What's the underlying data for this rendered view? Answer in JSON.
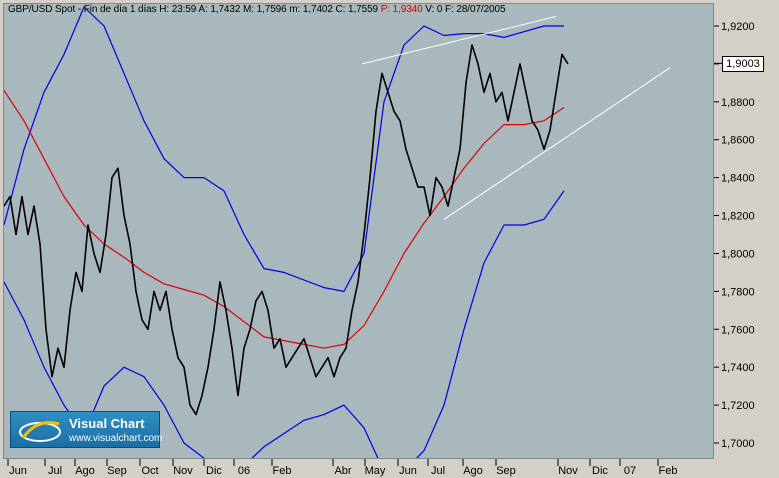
{
  "header": {
    "instrument": "GBP/USD Spot - Fin de día 1 días",
    "h": "H: 23:59",
    "a": "A: 1,7432",
    "m": "M: 1,7596",
    "mlow": "m: 1,7402",
    "c": "C: 1,7559",
    "p": "P: 1,9340",
    "v": "V: 0",
    "f": "F: 28/07/2005"
  },
  "logo": {
    "title": "Visual Chart",
    "url": "www.visualchart.com"
  },
  "colors": {
    "price": "#000000",
    "ma": "#e00000",
    "bands": "#0000e0",
    "trend": "#ffffff",
    "plot_bg": "#a9b8bd"
  },
  "chart_data": {
    "type": "line",
    "last_price_label": "1,9003",
    "y_ticks": [
      "1,9200",
      "1,9000",
      "1,8800",
      "1,8600",
      "1,8400",
      "1,8200",
      "1,8000",
      "1,7800",
      "1,7600",
      "1,7400",
      "1,7200",
      "1,7000"
    ],
    "ylim": [
      1.69,
      1.93
    ],
    "x_ticks": [
      "Jun",
      "Jul",
      "Ago",
      "Sep",
      "Oct",
      "Nov",
      "Dic",
      "06",
      "Feb",
      "Abr",
      "May",
      "Jun",
      "Jul",
      "Ago",
      "Sep",
      "Nov",
      "Dic",
      "07",
      "Feb"
    ],
    "series": [
      {
        "key": "price",
        "values": [
          [
            0,
            1.825
          ],
          [
            6,
            1.83
          ],
          [
            12,
            1.81
          ],
          [
            18,
            1.83
          ],
          [
            24,
            1.81
          ],
          [
            30,
            1.825
          ],
          [
            36,
            1.805
          ],
          [
            42,
            1.76
          ],
          [
            48,
            1.735
          ],
          [
            54,
            1.75
          ],
          [
            60,
            1.74
          ],
          [
            66,
            1.77
          ],
          [
            72,
            1.79
          ],
          [
            78,
            1.78
          ],
          [
            84,
            1.815
          ],
          [
            90,
            1.8
          ],
          [
            96,
            1.79
          ],
          [
            102,
            1.81
          ],
          [
            108,
            1.84
          ],
          [
            114,
            1.845
          ],
          [
            120,
            1.82
          ],
          [
            126,
            1.805
          ],
          [
            132,
            1.78
          ],
          [
            138,
            1.765
          ],
          [
            144,
            1.76
          ],
          [
            150,
            1.78
          ],
          [
            156,
            1.77
          ],
          [
            162,
            1.78
          ],
          [
            168,
            1.76
          ],
          [
            174,
            1.745
          ],
          [
            180,
            1.74
          ],
          [
            186,
            1.72
          ],
          [
            192,
            1.715
          ],
          [
            198,
            1.725
          ],
          [
            204,
            1.74
          ],
          [
            210,
            1.76
          ],
          [
            216,
            1.785
          ],
          [
            222,
            1.77
          ],
          [
            228,
            1.75
          ],
          [
            234,
            1.725
          ],
          [
            240,
            1.75
          ],
          [
            246,
            1.76
          ],
          [
            252,
            1.775
          ],
          [
            258,
            1.78
          ],
          [
            264,
            1.77
          ],
          [
            270,
            1.75
          ],
          [
            276,
            1.755
          ],
          [
            282,
            1.74
          ],
          [
            288,
            1.745
          ],
          [
            294,
            1.75
          ],
          [
            300,
            1.755
          ],
          [
            306,
            1.745
          ],
          [
            312,
            1.735
          ],
          [
            318,
            1.74
          ],
          [
            324,
            1.745
          ],
          [
            330,
            1.735
          ],
          [
            336,
            1.745
          ],
          [
            342,
            1.75
          ],
          [
            348,
            1.77
          ],
          [
            354,
            1.785
          ],
          [
            360,
            1.81
          ],
          [
            366,
            1.84
          ],
          [
            372,
            1.875
          ],
          [
            378,
            1.895
          ],
          [
            384,
            1.885
          ],
          [
            390,
            1.875
          ],
          [
            396,
            1.87
          ],
          [
            402,
            1.855
          ],
          [
            408,
            1.845
          ],
          [
            414,
            1.835
          ],
          [
            420,
            1.835
          ],
          [
            426,
            1.82
          ],
          [
            432,
            1.84
          ],
          [
            438,
            1.835
          ],
          [
            444,
            1.825
          ],
          [
            450,
            1.84
          ],
          [
            456,
            1.855
          ],
          [
            462,
            1.89
          ],
          [
            468,
            1.91
          ],
          [
            474,
            1.9
          ],
          [
            480,
            1.885
          ],
          [
            486,
            1.895
          ],
          [
            492,
            1.88
          ],
          [
            498,
            1.885
          ],
          [
            504,
            1.87
          ],
          [
            510,
            1.885
          ],
          [
            516,
            1.9
          ],
          [
            522,
            1.885
          ],
          [
            528,
            1.87
          ],
          [
            534,
            1.865
          ],
          [
            540,
            1.855
          ],
          [
            546,
            1.865
          ],
          [
            552,
            1.885
          ],
          [
            558,
            1.905
          ],
          [
            564,
            1.9
          ]
        ]
      },
      {
        "key": "ma",
        "values": [
          [
            0,
            1.886
          ],
          [
            20,
            1.87
          ],
          [
            40,
            1.85
          ],
          [
            60,
            1.83
          ],
          [
            80,
            1.815
          ],
          [
            100,
            1.805
          ],
          [
            120,
            1.798
          ],
          [
            140,
            1.79
          ],
          [
            160,
            1.784
          ],
          [
            180,
            1.781
          ],
          [
            200,
            1.778
          ],
          [
            220,
            1.772
          ],
          [
            240,
            1.764
          ],
          [
            260,
            1.756
          ],
          [
            280,
            1.754
          ],
          [
            300,
            1.752
          ],
          [
            320,
            1.75
          ],
          [
            340,
            1.752
          ],
          [
            360,
            1.762
          ],
          [
            380,
            1.78
          ],
          [
            400,
            1.8
          ],
          [
            420,
            1.816
          ],
          [
            440,
            1.83
          ],
          [
            460,
            1.845
          ],
          [
            480,
            1.858
          ],
          [
            500,
            1.868
          ],
          [
            520,
            1.868
          ],
          [
            540,
            1.87
          ],
          [
            560,
            1.877
          ]
        ]
      },
      {
        "key": "upper",
        "values": [
          [
            0,
            1.815
          ],
          [
            20,
            1.855
          ],
          [
            40,
            1.885
          ],
          [
            60,
            1.905
          ],
          [
            80,
            1.93
          ],
          [
            100,
            1.92
          ],
          [
            120,
            1.895
          ],
          [
            140,
            1.87
          ],
          [
            160,
            1.85
          ],
          [
            180,
            1.84
          ],
          [
            200,
            1.84
          ],
          [
            220,
            1.833
          ],
          [
            240,
            1.81
          ],
          [
            260,
            1.792
          ],
          [
            280,
            1.79
          ],
          [
            300,
            1.786
          ],
          [
            320,
            1.782
          ],
          [
            340,
            1.78
          ],
          [
            360,
            1.8
          ],
          [
            380,
            1.88
          ],
          [
            400,
            1.91
          ],
          [
            420,
            1.92
          ],
          [
            440,
            1.915
          ],
          [
            460,
            1.916
          ],
          [
            480,
            1.916
          ],
          [
            500,
            1.914
          ],
          [
            520,
            1.917
          ],
          [
            540,
            1.92
          ],
          [
            560,
            1.92
          ]
        ]
      },
      {
        "key": "lower",
        "values": [
          [
            0,
            1.785
          ],
          [
            20,
            1.765
          ],
          [
            40,
            1.74
          ],
          [
            60,
            1.72
          ],
          [
            80,
            1.705
          ],
          [
            100,
            1.73
          ],
          [
            120,
            1.74
          ],
          [
            140,
            1.735
          ],
          [
            160,
            1.72
          ],
          [
            180,
            1.7
          ],
          [
            200,
            1.692
          ],
          [
            220,
            1.685
          ],
          [
            240,
            1.688
          ],
          [
            260,
            1.698
          ],
          [
            280,
            1.705
          ],
          [
            300,
            1.712
          ],
          [
            320,
            1.715
          ],
          [
            340,
            1.72
          ],
          [
            360,
            1.708
          ],
          [
            380,
            1.685
          ],
          [
            400,
            1.685
          ],
          [
            420,
            1.696
          ],
          [
            440,
            1.72
          ],
          [
            460,
            1.76
          ],
          [
            480,
            1.795
          ],
          [
            500,
            1.815
          ],
          [
            520,
            1.815
          ],
          [
            540,
            1.818
          ],
          [
            560,
            1.833
          ]
        ]
      }
    ],
    "trendlines": [
      {
        "from": [
          358,
          1.9
        ],
        "to": [
          552,
          1.925
        ]
      },
      {
        "from": [
          440,
          1.818
        ],
        "to": [
          666,
          1.898
        ]
      }
    ]
  }
}
